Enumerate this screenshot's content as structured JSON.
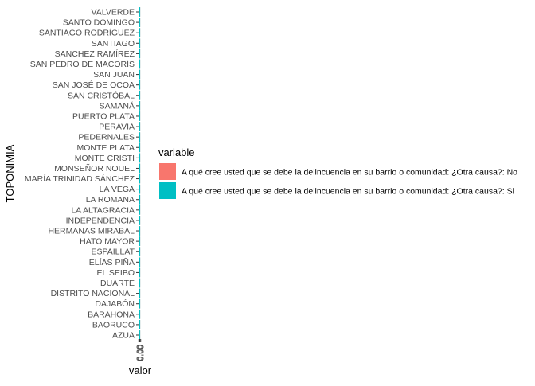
{
  "chart_data": {
    "type": "bar",
    "orientation": "horizontal",
    "stacked": true,
    "ylabel": "TOPONIMIA",
    "xlabel": "valor",
    "x_tick_labels": [
      "0.00",
      "0.00",
      "0.00"
    ],
    "categories": [
      "AZUA",
      "BAORUCO",
      "BARAHONA",
      "DAJABÓN",
      "DISTRITO NACIONAL",
      "DUARTE",
      "EL SEIBO",
      "ELÍAS PIÑA",
      "ESPAILLAT",
      "HATO MAYOR",
      "HERMANAS MIRABAL",
      "INDEPENDENCIA",
      "LA ALTAGRACIA",
      "LA ROMANA",
      "LA VEGA",
      "MARÍA TRINIDAD SÁNCHEZ",
      "MONSEÑOR NOUEL",
      "MONTE CRISTI",
      "MONTE PLATA",
      "PEDERNALES",
      "PERAVIA",
      "PUERTO PLATA",
      "SAMANÁ",
      "SAN CRISTÓBAL",
      "SAN JOSÉ DE OCOA",
      "SAN JUAN",
      "SAN PEDRO DE MACORÍS",
      "SANCHEZ RAMÍREZ",
      "SANTIAGO",
      "SANTIAGO RODRÍGUEZ",
      "SANTO DOMINGO",
      "VALVERDE"
    ],
    "series": [
      {
        "name": "A qué cree usted que se debe la delincuencia en su barrio o comunidad: ¿Otra causa?: No",
        "color": "#F8766D",
        "values": [
          0,
          0,
          0,
          0,
          0,
          0,
          0,
          0,
          0,
          0,
          0,
          0,
          0,
          0,
          0,
          0,
          0,
          0,
          0,
          0,
          0,
          0,
          0,
          0,
          0,
          0,
          0,
          0,
          0,
          0,
          0,
          0
        ]
      },
      {
        "name": "A qué cree usted que se debe la delincuencia en su barrio o comunidad: ¿Otra causa?: Si",
        "color": "#00BFC4",
        "values": [
          0,
          0,
          0,
          0,
          0,
          0,
          0,
          0,
          0,
          0,
          0,
          0,
          0,
          0,
          0,
          0,
          0,
          0,
          0,
          0,
          0,
          0,
          0,
          0,
          0,
          0,
          0,
          0,
          0,
          0,
          0,
          0
        ]
      }
    ],
    "legend": {
      "title": "variable",
      "position": "right"
    },
    "grid": false
  }
}
